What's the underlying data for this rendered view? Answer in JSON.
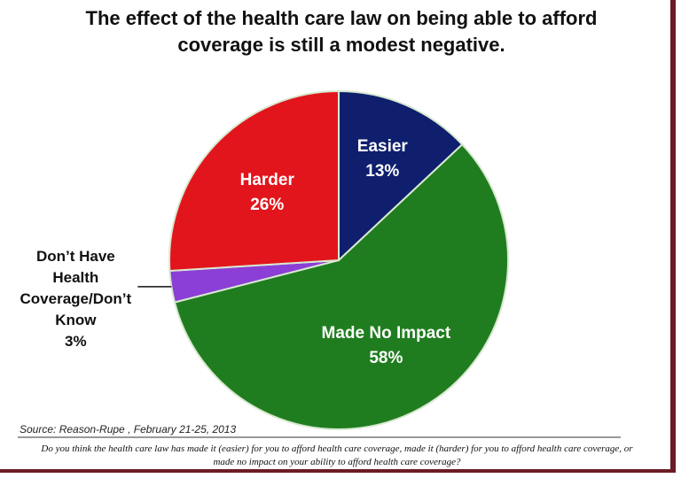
{
  "chart_data": {
    "type": "pie",
    "title": "The effect of the health care law on being able to afford coverage is still a modest negative.",
    "categories": [
      "Easier",
      "Made No Impact",
      "Don’t Have Health Coverage/Don’t Know",
      "Harder"
    ],
    "values": [
      13,
      58,
      3,
      26
    ],
    "value_labels": [
      "13%",
      "58%",
      "3%",
      "26%"
    ],
    "colors": [
      "#0f1f6e",
      "#1f7d1f",
      "#8b3fd6",
      "#e2151c"
    ],
    "source": "Source: Reason-Rupe , February 21-25, 2013",
    "note": "Do you think the health care law has made it (easier) for you to afford health care coverage, made it (harder) for you to afford health care coverage, or made no impact on your ability to afford health care coverage?"
  }
}
